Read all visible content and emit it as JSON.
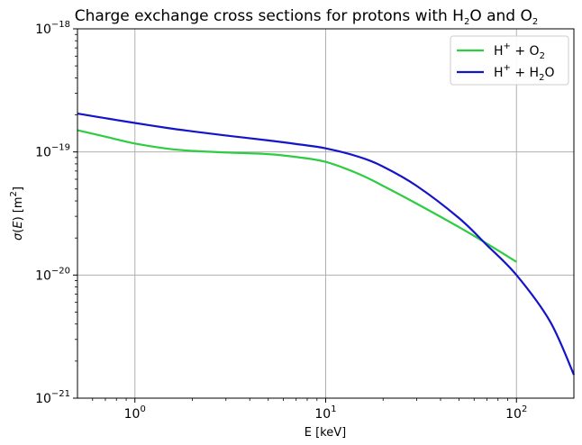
{
  "chart_data": {
    "type": "line",
    "title": {
      "prefix": "Charge exchange cross sections for protons with H",
      "sub1": "2",
      "mid": "O and O",
      "sub2": "2"
    },
    "xlabel": "E [keV]",
    "ylabel": {
      "sigma": "σ",
      "paren_open": "(",
      "var": "E",
      "paren_close": ")",
      "unit_open": " [m",
      "unit_sup": "2",
      "unit_close": "]"
    },
    "xscale": "log",
    "yscale": "log",
    "xlim": [
      0.5,
      200
    ],
    "ylim": [
      1e-21,
      1e-18
    ],
    "grid": true,
    "legend_position": "top-right",
    "x_ticks": [
      {
        "value": 1,
        "base": "10",
        "exp": "0"
      },
      {
        "value": 10,
        "base": "10",
        "exp": "1"
      },
      {
        "value": 100,
        "base": "10",
        "exp": "2"
      }
    ],
    "y_ticks": [
      {
        "value": 1e-21,
        "base": "10",
        "exp": "−21"
      },
      {
        "value": 1e-20,
        "base": "10",
        "exp": "−20"
      },
      {
        "value": 1e-19,
        "base": "10",
        "exp": "−19"
      },
      {
        "value": 1e-18,
        "base": "10",
        "exp": "−18"
      }
    ],
    "series": [
      {
        "legend": {
          "ion": "H",
          "charge": "+",
          "plus": " + O",
          "sub": "2",
          "tail": ""
        },
        "color": "#2ecc40",
        "x": [
          0.5,
          0.7,
          1.0,
          1.5,
          2.0,
          3.0,
          5.0,
          7.0,
          10.0,
          15.0,
          20.0,
          30.0,
          50.0,
          70.0,
          100.0
        ],
        "y": [
          1.5e-19,
          1.33e-19,
          1.17e-19,
          1.06e-19,
          1.02e-19,
          9.9e-20,
          9.6e-20,
          9.1e-20,
          8.3e-20,
          6.6e-20,
          5.3e-20,
          3.8e-20,
          2.45e-20,
          1.8e-20,
          1.28e-20
        ]
      },
      {
        "legend": {
          "ion": "H",
          "charge": "+",
          "plus": " + H",
          "sub": "2",
          "tail": "O"
        },
        "color": "#1414c8",
        "x": [
          0.5,
          0.7,
          1.0,
          1.5,
          2.0,
          3.0,
          5.0,
          7.0,
          10.0,
          15.0,
          20.0,
          30.0,
          50.0,
          70.0,
          100.0,
          150.0,
          200.0
        ],
        "y": [
          2.05e-19,
          1.88e-19,
          1.72e-19,
          1.56e-19,
          1.47e-19,
          1.36e-19,
          1.24e-19,
          1.16e-19,
          1.07e-19,
          9.1e-20,
          7.6e-20,
          5.3e-20,
          2.9e-20,
          1.75e-20,
          1e-20,
          4.2e-21,
          1.55e-21
        ]
      }
    ]
  }
}
